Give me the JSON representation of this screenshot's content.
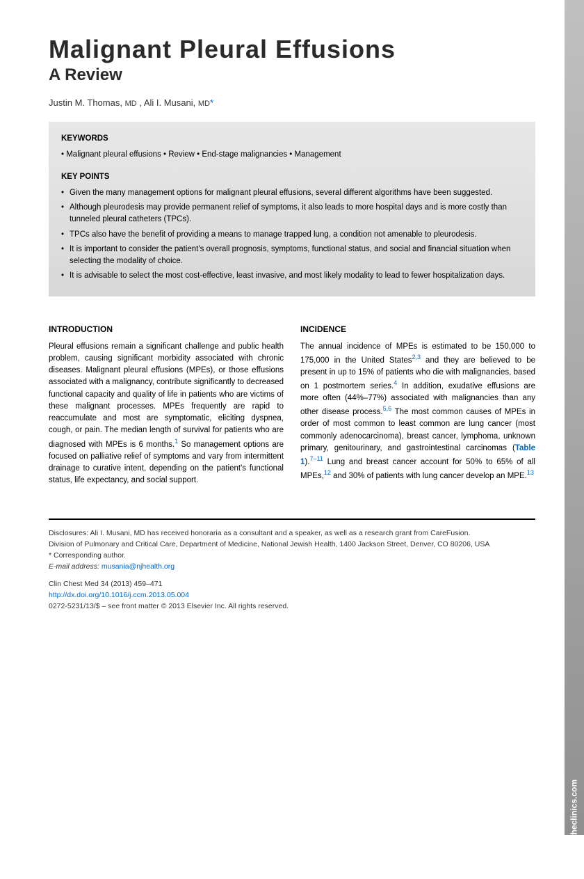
{
  "title": "Malignant Pleural Effusions",
  "subtitle": "A Review",
  "authors_html": "Justin M. Thomas, MD, Ali I. Musani, MD",
  "author1_name": "Justin M. Thomas,",
  "author1_deg": "MD",
  "author2_name": ", Ali I. Musani,",
  "author2_deg": "MD",
  "star": "*",
  "keywords_label": "KEYWORDS",
  "keywords": "• Malignant pleural effusions • Review • End-stage malignancies • Management",
  "keypoints_label": "KEY POINTS",
  "keypoints": [
    "Given the many management options for malignant pleural effusions, several different algorithms have been suggested.",
    "Although pleurodesis may provide permanent relief of symptoms, it also leads to more hospital days and is more costly than tunneled pleural catheters (TPCs).",
    "TPCs also have the benefit of providing a means to manage trapped lung, a condition not amenable to pleurodesis.",
    "It is important to consider the patient's overall prognosis, symptoms, functional status, and social and financial situation when selecting the modality of choice.",
    "It is advisable to select the most cost-effective, least invasive, and most likely modality to lead to fewer hospitalization days."
  ],
  "intro_heading": "INTRODUCTION",
  "intro_p1a": "Pleural effusions remain a significant challenge and public health problem, causing significant morbidity associated with chronic diseases. Malignant pleural effusions (MPEs), or those effusions associated with a malignancy, contribute significantly to decreased functional capacity and quality of life in patients who are victims of these malignant processes. MPEs frequently are rapid to reaccumulate and most are symptomatic, eliciting dyspnea, cough, or pain. The median length of survival for patients who are diagnosed with MPEs is 6 months.",
  "intro_ref1": "1",
  "intro_p1b": " So management options are focused on palliative relief of symptoms and vary from intermittent drainage to curative intent, depending on the patient's functional status, life expectancy, and social support.",
  "incidence_heading": "INCIDENCE",
  "inc_p1a": "The annual incidence of MPEs is estimated to be 150,000 to 175,000 in the United States",
  "inc_ref23": "2,3",
  "inc_p1b": " and they are believed to be present in up to 15% of patients who die with malignancies, based on 1 postmortem series.",
  "inc_ref4": "4",
  "inc_p1c": " In addition, exudative effusions are more often (44%–77%) associated with malignancies than any other disease process.",
  "inc_ref56": "5,6",
  "inc_p1d": " The most common causes of MPEs in order of most common to least common are lung cancer (most commonly adenocarcinoma), breast cancer, lymphoma, unknown primary, genitourinary, and gastrointestinal carcinomas (",
  "inc_table": "Table 1",
  "inc_p1e": ").",
  "inc_ref711": "7–11",
  "inc_p1f": " Lung and breast cancer account for 50% to 65% of all MPEs,",
  "inc_ref12": "12",
  "inc_p1g": " and 30% of patients with lung cancer develop an MPE.",
  "inc_ref13": "13",
  "footer_disclosure": "Disclosures: Ali I. Musani, MD has received honoraria as a consultant and a speaker, as well as a research grant from CareFusion.",
  "footer_affiliation": "Division of Pulmonary and Critical Care, Department of Medicine, National Jewish Health, 1400 Jackson Street, Denver, CO 80206, USA",
  "footer_corresponding": "* Corresponding author.",
  "footer_email_label": "E-mail address:",
  "footer_email": "musania@njhealth.org",
  "footer_citation": "Clin Chest Med 34 (2013) 459–471",
  "footer_doi": "http://dx.doi.org/10.1016/j.ccm.2013.05.004",
  "footer_copyright": "0272-5231/13/$ – see front matter © 2013 Elsevier Inc. All rights reserved.",
  "sidebar_text": "chestmed.theclinics.com"
}
